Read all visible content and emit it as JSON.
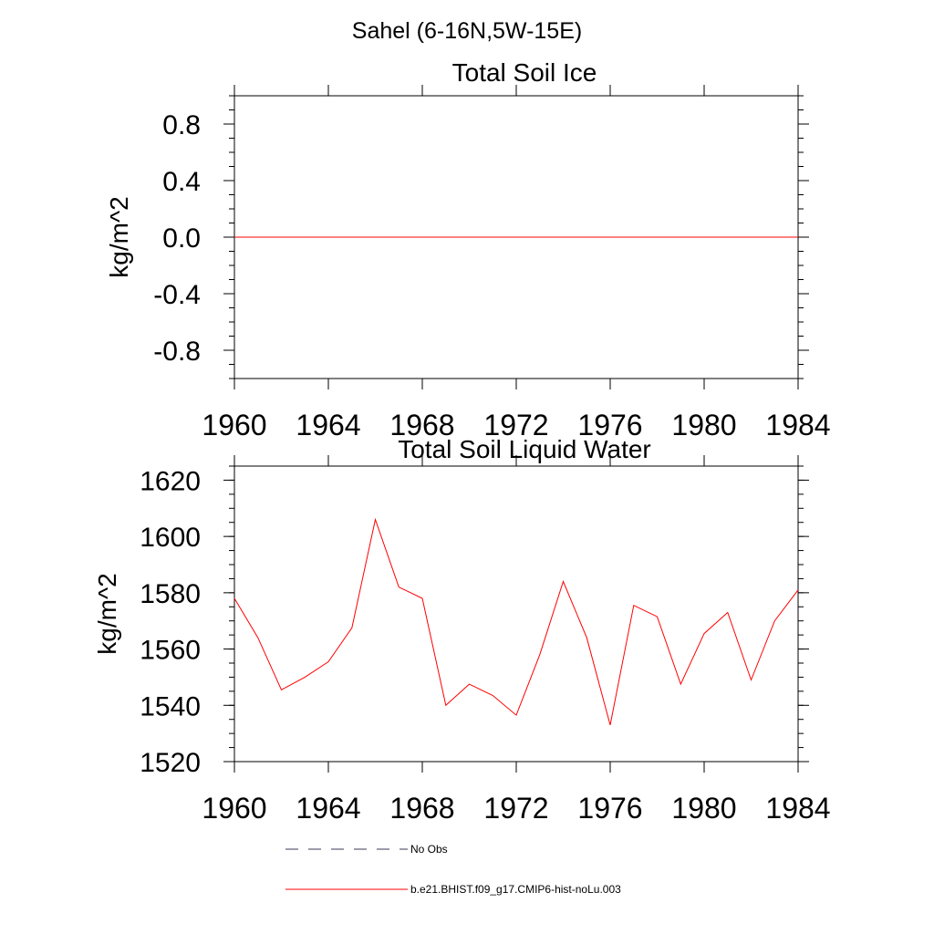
{
  "suptitle": "Sahel (6-16N,5W-15E)",
  "colors": {
    "model_line": "#ff0000",
    "obs_line": "#3a3a5a",
    "axis": "#000000"
  },
  "chart_data": [
    {
      "type": "line",
      "title": "Total Soil Ice",
      "xlabel": "",
      "ylabel": "kg/m^2",
      "xlim": [
        1960,
        1984
      ],
      "ylim": [
        -1.0,
        1.0
      ],
      "xticks": [
        1960,
        1964,
        1968,
        1972,
        1976,
        1980,
        1984
      ],
      "xtick_labels": [
        "1960",
        "1964",
        "1968",
        "1972",
        "1976",
        "1980",
        "1984"
      ],
      "yticks": [
        0.8,
        0.4,
        0.0,
        -0.4,
        -0.8
      ],
      "ytick_labels": [
        "0.8",
        "0.4",
        "0.0",
        "-0.4",
        "-0.8"
      ],
      "grid": false,
      "series": [
        {
          "name": "b.e21.BHIST.f09_g17.CMIP6-hist-noLu.003",
          "x": [
            1960,
            1961,
            1962,
            1963,
            1964,
            1965,
            1966,
            1967,
            1968,
            1969,
            1970,
            1971,
            1972,
            1973,
            1974,
            1975,
            1976,
            1977,
            1978,
            1979,
            1980,
            1981,
            1982,
            1983,
            1984
          ],
          "y": [
            0,
            0,
            0,
            0,
            0,
            0,
            0,
            0,
            0,
            0,
            0,
            0,
            0,
            0,
            0,
            0,
            0,
            0,
            0,
            0,
            0,
            0,
            0,
            0,
            0
          ]
        }
      ]
    },
    {
      "type": "line",
      "title": "Total Soil Liquid Water",
      "xlabel": "",
      "ylabel": "kg/m^2",
      "xlim": [
        1960,
        1984
      ],
      "ylim": [
        1520,
        1625
      ],
      "xticks": [
        1960,
        1964,
        1968,
        1972,
        1976,
        1980,
        1984
      ],
      "xtick_labels": [
        "1960",
        "1964",
        "1968",
        "1972",
        "1976",
        "1980",
        "1984"
      ],
      "yticks": [
        1620,
        1600,
        1580,
        1560,
        1540,
        1520
      ],
      "ytick_labels": [
        "1620",
        "1600",
        "1580",
        "1560",
        "1540",
        "1520"
      ],
      "grid": false,
      "series": [
        {
          "name": "b.e21.BHIST.f09_g17.CMIP6-hist-noLu.003",
          "x": [
            1960,
            1961,
            1962,
            1963,
            1964,
            1965,
            1966,
            1967,
            1968,
            1969,
            1970,
            1971,
            1972,
            1973,
            1974,
            1975,
            1976,
            1977,
            1978,
            1979,
            1980,
            1981,
            1982,
            1983,
            1984
          ],
          "y": [
            1578,
            1564,
            1545.5,
            1550,
            1555.5,
            1567.5,
            1606,
            1582,
            1578,
            1540,
            1547.5,
            1543.5,
            1536.5,
            1558,
            1584,
            1564,
            1533,
            1575.5,
            1571.5,
            1547.5,
            1565.5,
            1573,
            1549,
            1570,
            1581
          ]
        }
      ]
    }
  ],
  "legend": {
    "placement": "bottom",
    "entries": [
      {
        "label": "No Obs",
        "style": "dashed"
      },
      {
        "label": "b.e21.BHIST.f09_g17.CMIP6-hist-noLu.003",
        "style": "solid"
      }
    ]
  }
}
